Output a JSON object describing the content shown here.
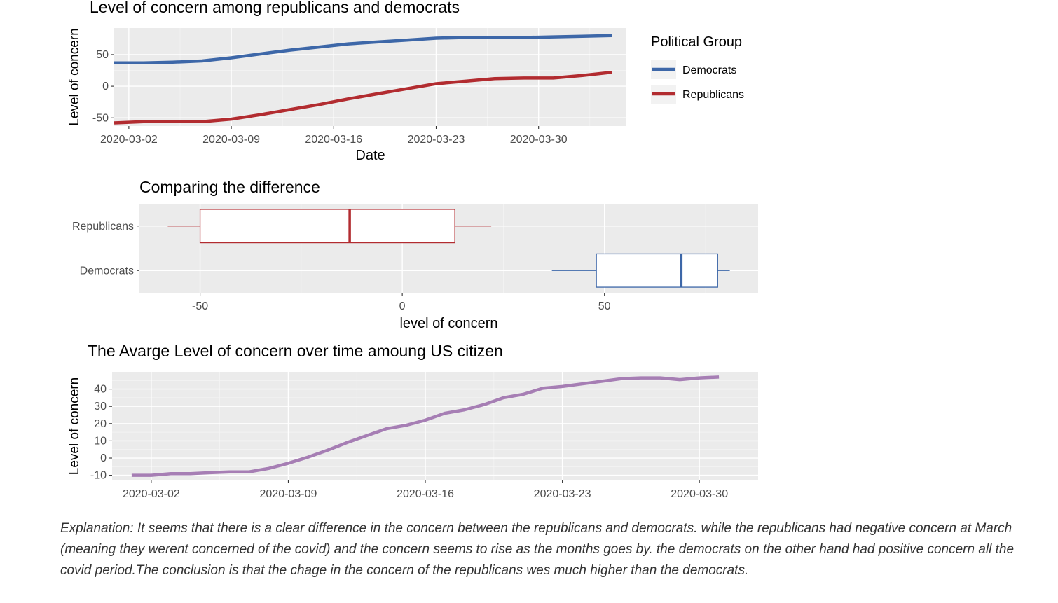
{
  "chart_data": [
    {
      "type": "line",
      "title": "Level of concern among republicans and democrats",
      "xlabel": "Date",
      "ylabel": "Level of concern",
      "x_ticks": [
        "2020-03-02",
        "2020-03-09",
        "2020-03-16",
        "2020-03-23",
        "2020-03-30"
      ],
      "y_ticks": [
        50,
        0,
        -50
      ],
      "xlim": [
        "2020-03-01",
        "2020-04-05"
      ],
      "ylim": [
        -63,
        92
      ],
      "grid": true,
      "legend": {
        "title": "Political Group",
        "placement": "right"
      },
      "series": [
        {
          "name": "Democrats",
          "color": "#3d67a8",
          "x": [
            "2020-03-01",
            "2020-03-03",
            "2020-03-05",
            "2020-03-07",
            "2020-03-09",
            "2020-03-11",
            "2020-03-13",
            "2020-03-15",
            "2020-03-17",
            "2020-03-19",
            "2020-03-21",
            "2020-03-23",
            "2020-03-25",
            "2020-03-27",
            "2020-03-29",
            "2020-03-31",
            "2020-04-02",
            "2020-04-04"
          ],
          "values": [
            37,
            37,
            38,
            40,
            45,
            51,
            57,
            62,
            67,
            70,
            73,
            76,
            77,
            77,
            77,
            78,
            79,
            80
          ]
        },
        {
          "name": "Republicans",
          "color": "#b22c30",
          "x": [
            "2020-03-01",
            "2020-03-03",
            "2020-03-05",
            "2020-03-07",
            "2020-03-09",
            "2020-03-11",
            "2020-03-13",
            "2020-03-15",
            "2020-03-17",
            "2020-03-19",
            "2020-03-21",
            "2020-03-23",
            "2020-03-25",
            "2020-03-27",
            "2020-03-29",
            "2020-03-31",
            "2020-04-02",
            "2020-04-04"
          ],
          "values": [
            -58,
            -56,
            -56,
            -56,
            -52,
            -45,
            -37,
            -29,
            -20,
            -12,
            -4,
            4,
            8,
            12,
            13,
            13,
            17,
            22
          ]
        }
      ]
    },
    {
      "type": "box",
      "title": "Comparing the difference",
      "xlabel": "level of concern",
      "ylabel": "",
      "x_ticks": [
        -50,
        0,
        50
      ],
      "xlim": [
        -65,
        88
      ],
      "grid": true,
      "categories": [
        "Republicans",
        "Democrats"
      ],
      "series": [
        {
          "name": "Republicans",
          "color": "#b22c30",
          "min": -58,
          "q1": -50,
          "median": -13,
          "q3": 13,
          "max": 22
        },
        {
          "name": "Democrats",
          "color": "#3d67a8",
          "min": 37,
          "q1": 48,
          "median": 69,
          "q3": 78,
          "max": 81
        }
      ]
    },
    {
      "type": "line",
      "title": "The Avarge Level of concern over time amoung US citizen",
      "xlabel": "",
      "ylabel": "Level of concern",
      "x_ticks": [
        "2020-03-02",
        "2020-03-09",
        "2020-03-16",
        "2020-03-23",
        "2020-03-30"
      ],
      "y_ticks": [
        40,
        30,
        20,
        10,
        0,
        -10
      ],
      "xlim": [
        "2020-02-29",
        "2020-04-02"
      ],
      "ylim": [
        -13,
        50
      ],
      "grid": true,
      "series": [
        {
          "name": "",
          "color": "#a67eb4",
          "x": [
            "2020-03-01",
            "2020-03-02",
            "2020-03-03",
            "2020-03-04",
            "2020-03-05",
            "2020-03-06",
            "2020-03-07",
            "2020-03-08",
            "2020-03-09",
            "2020-03-10",
            "2020-03-11",
            "2020-03-12",
            "2020-03-13",
            "2020-03-14",
            "2020-03-15",
            "2020-03-16",
            "2020-03-17",
            "2020-03-18",
            "2020-03-19",
            "2020-03-20",
            "2020-03-21",
            "2020-03-22",
            "2020-03-23",
            "2020-03-24",
            "2020-03-25",
            "2020-03-26",
            "2020-03-27",
            "2020-03-28",
            "2020-03-29",
            "2020-03-30",
            "2020-03-31"
          ],
          "values": [
            -10,
            -10,
            -9,
            -9,
            -8.5,
            -8,
            -8,
            -6,
            -3,
            0.5,
            4.5,
            9,
            13,
            17,
            19,
            22,
            26,
            28,
            31,
            35,
            37,
            40.5,
            41.5,
            43,
            44.5,
            46,
            46.5,
            46.5,
            45.5,
            46.5,
            47
          ]
        }
      ]
    }
  ],
  "explanation": "Explanation: It seems that there is a clear difference in the concern between the republicans and democrats. while the republicans had negative concern at March (meaning they werent concerned of the covid) and the concern seems to rise as the months goes by. the democrats on the other hand had positive concern all the covid period.The conclusion is that the chage in the concern of the republicans wes much higher than the democrats."
}
